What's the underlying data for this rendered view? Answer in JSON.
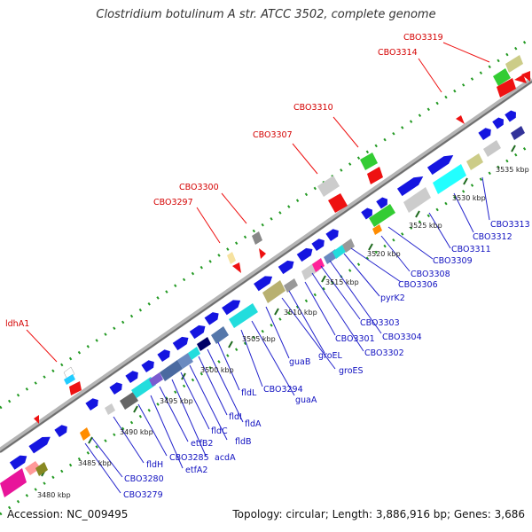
{
  "title": "Clostridium botulinum A str. ATCC 3502, complete genome",
  "footer": {
    "accession": "Accession: NC_009495",
    "summary": "Topology: circular; Length: 3,886,916 bp; Genes: 3,686"
  },
  "kbp_ticks": [
    "3480 kbp",
    "3485 kbp",
    "3490 kbp",
    "3495 kbp",
    "3500 kbp",
    "3505 kbp",
    "3510 kbp",
    "3515 kbp",
    "3520 kbp",
    "3525 kbp",
    "3530 kbp",
    "3535 kbp"
  ],
  "red_labels": [
    "ldhA1",
    "CBO3297",
    "CBO3300",
    "CBO3307",
    "CBO3310",
    "CBO3314",
    "CBO3319"
  ],
  "blue_labels": [
    "CBO3279",
    "CBO3280",
    "fldH",
    "CBO3285",
    "etfA2",
    "etfB2",
    "acdA",
    "fldC",
    "fldB",
    "fldI",
    "fldA",
    "fldL",
    "CBO3294",
    "guaA",
    "guaB",
    "groES",
    "groEL",
    "CBO3301",
    "CBO3302",
    "CBO3303",
    "CBO3304",
    "pyrK2",
    "CBO3306",
    "CBO3308",
    "CBO3309",
    "CBO3311",
    "CBO3312",
    "CBO3313"
  ],
  "colors": {
    "backbone": "#8c8c8c",
    "dots": "#229922",
    "forward_gene": "#1515e0",
    "reverse_gene": "#ee1111",
    "label_red": "#d40000",
    "label_blue": "#1010c0"
  }
}
